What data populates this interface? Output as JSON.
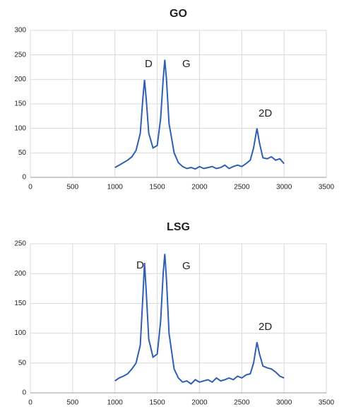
{
  "chart_data": [
    {
      "type": "line",
      "title": "GO",
      "x": [
        1000,
        1050,
        1100,
        1150,
        1200,
        1250,
        1300,
        1330,
        1350,
        1370,
        1400,
        1450,
        1500,
        1540,
        1570,
        1590,
        1610,
        1640,
        1700,
        1750,
        1800,
        1850,
        1900,
        1950,
        2000,
        2050,
        2100,
        2150,
        2200,
        2250,
        2300,
        2350,
        2400,
        2450,
        2500,
        2550,
        2600,
        2640,
        2680,
        2710,
        2750,
        2800,
        2850,
        2900,
        2950,
        3000
      ],
      "series": [
        {
          "color": "#2f5fb3",
          "values": [
            20,
            25,
            30,
            35,
            42,
            55,
            90,
            160,
            199,
            160,
            90,
            60,
            65,
            120,
            200,
            240,
            200,
            110,
            50,
            30,
            22,
            18,
            20,
            17,
            22,
            18,
            20,
            22,
            18,
            20,
            25,
            18,
            22,
            25,
            22,
            28,
            35,
            60,
            100,
            70,
            40,
            38,
            42,
            35,
            38,
            28
          ]
        }
      ],
      "xlim": [
        0,
        3500
      ],
      "xticks": [
        0,
        500,
        1000,
        1500,
        2000,
        2500,
        3000,
        3500
      ],
      "ylim": [
        0,
        300
      ],
      "yticks": [
        0,
        50,
        100,
        150,
        200,
        250,
        300
      ],
      "grid": true,
      "annotations": [
        "D",
        "G",
        "2D"
      ]
    },
    {
      "type": "line",
      "title": "LSG",
      "x": [
        1000,
        1050,
        1100,
        1150,
        1200,
        1250,
        1300,
        1330,
        1350,
        1370,
        1400,
        1450,
        1500,
        1540,
        1570,
        1590,
        1610,
        1640,
        1700,
        1750,
        1800,
        1850,
        1900,
        1950,
        2000,
        2050,
        2100,
        2150,
        2200,
        2250,
        2300,
        2350,
        2400,
        2450,
        2500,
        2550,
        2600,
        2640,
        2680,
        2710,
        2750,
        2800,
        2850,
        2900,
        2950,
        3000
      ],
      "series": [
        {
          "color": "#2f5fb3",
          "values": [
            20,
            25,
            28,
            32,
            40,
            50,
            80,
            160,
            218,
            170,
            90,
            60,
            65,
            120,
            200,
            233,
            190,
            100,
            40,
            25,
            18,
            20,
            15,
            22,
            18,
            20,
            22,
            18,
            25,
            20,
            22,
            25,
            22,
            28,
            25,
            30,
            32,
            50,
            85,
            65,
            45,
            42,
            40,
            35,
            28,
            25
          ]
        }
      ],
      "xlim": [
        0,
        3500
      ],
      "xticks": [
        0,
        500,
        1000,
        1500,
        2000,
        2500,
        3000,
        3500
      ],
      "ylim": [
        0,
        250
      ],
      "yticks": [
        0,
        50,
        100,
        150,
        200,
        250
      ],
      "grid": true,
      "annotations": [
        "D",
        "G",
        "2D"
      ]
    }
  ]
}
